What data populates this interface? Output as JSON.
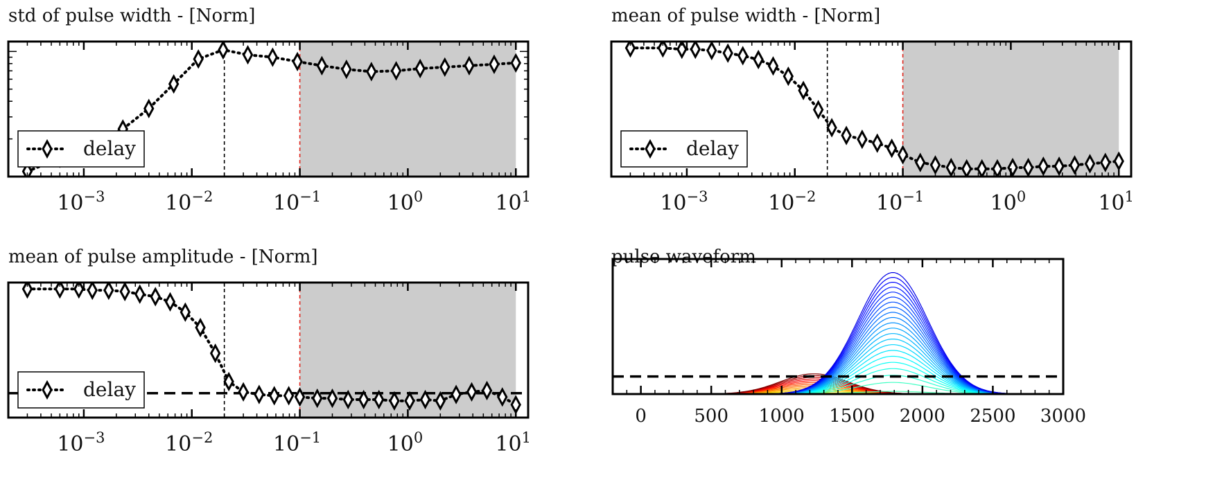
{
  "chart_data": [
    {
      "type": "scatter",
      "title": "std of pulse width - [Norm]",
      "xscale": "log",
      "yscale": "log",
      "xlim": [
        0.0002,
        13
      ],
      "ylim": [
        0.1,
        1.2
      ],
      "xticklabels": [
        "10",
        "10",
        "10",
        "10",
        "10"
      ],
      "xtickexp": [
        "−3",
        "−2",
        "−1",
        "0",
        "1"
      ],
      "xtickvals": [
        0.001,
        0.01,
        0.1,
        1,
        10
      ],
      "vline_black": 0.02,
      "vline_red": 0.1,
      "shaded_region": [
        0.1,
        10
      ],
      "legend": {
        "label": "delay",
        "loc": "lower left"
      },
      "series": [
        {
          "name": "delay",
          "x": [
            0.0003,
            0.0006,
            0.0009,
            0.0013,
            0.0023,
            0.004,
            0.0068,
            0.0115,
            0.0195,
            0.033,
            0.056,
            0.095,
            0.16,
            0.27,
            0.46,
            0.78,
            1.3,
            2.2,
            3.7,
            6.3,
            10
          ],
          "y": [
            0.11,
            0.14,
            0.16,
            0.19,
            0.24,
            0.35,
            0.55,
            0.87,
            1.03,
            0.94,
            0.9,
            0.83,
            0.77,
            0.72,
            0.69,
            0.7,
            0.73,
            0.75,
            0.77,
            0.79,
            0.81
          ]
        }
      ]
    },
    {
      "type": "scatter",
      "title": "mean of pulse width - [Norm]",
      "xscale": "log",
      "xlim": [
        0.0002,
        13
      ],
      "ylim": [
        0,
        1.05
      ],
      "xticklabels": [
        "10",
        "10",
        "10",
        "10",
        "10"
      ],
      "xtickexp": [
        "−3",
        "−2",
        "−1",
        "0",
        "1"
      ],
      "xtickvals": [
        0.001,
        0.01,
        0.1,
        1,
        10
      ],
      "vline_black": 0.02,
      "vline_red": 0.1,
      "shaded_region": [
        0.1,
        10
      ],
      "legend": {
        "label": "delay",
        "loc": "lower left"
      },
      "series": [
        {
          "name": "delay",
          "x": [
            0.0003,
            0.0006,
            0.0009,
            0.0012,
            0.0017,
            0.0024,
            0.0033,
            0.0046,
            0.0063,
            0.0087,
            0.012,
            0.0165,
            0.022,
            0.03,
            0.042,
            0.058,
            0.079,
            0.1,
            0.145,
            0.2,
            0.28,
            0.39,
            0.54,
            0.75,
            1.04,
            1.45,
            2.0,
            2.8,
            3.9,
            5.4,
            7.5,
            10
          ],
          "y": [
            1.0,
            1.0,
            0.99,
            0.99,
            0.98,
            0.96,
            0.94,
            0.91,
            0.86,
            0.78,
            0.67,
            0.52,
            0.38,
            0.32,
            0.29,
            0.26,
            0.22,
            0.17,
            0.11,
            0.09,
            0.07,
            0.06,
            0.06,
            0.06,
            0.07,
            0.07,
            0.08,
            0.08,
            0.09,
            0.1,
            0.11,
            0.12
          ]
        }
      ]
    },
    {
      "type": "scatter",
      "title": "mean of pulse amplitude - [Norm]",
      "xscale": "log",
      "xlim": [
        0.0002,
        13
      ],
      "ylim": [
        0,
        1.05
      ],
      "xticklabels": [
        "10",
        "10",
        "10",
        "10",
        "10"
      ],
      "xtickexp": [
        "−3",
        "−2",
        "−1",
        "0",
        "1"
      ],
      "xtickvals": [
        0.001,
        0.01,
        0.1,
        1,
        10
      ],
      "vline_black": 0.02,
      "vline_red": 0.1,
      "shaded_region": [
        0.1,
        10
      ],
      "hline_dashed": 0.19,
      "legend": {
        "label": "delay",
        "loc": "lower left"
      },
      "series": [
        {
          "name": "delay",
          "x": [
            0.0003,
            0.0006,
            0.0009,
            0.0012,
            0.0017,
            0.0024,
            0.0033,
            0.0046,
            0.0063,
            0.0087,
            0.012,
            0.0165,
            0.022,
            0.03,
            0.042,
            0.058,
            0.079,
            0.1,
            0.145,
            0.2,
            0.28,
            0.39,
            0.54,
            0.75,
            1.04,
            1.45,
            2.0,
            2.8,
            3.9,
            5.4,
            7.5,
            10
          ],
          "y": [
            1.0,
            1.0,
            1.0,
            0.99,
            0.99,
            0.98,
            0.96,
            0.94,
            0.9,
            0.82,
            0.7,
            0.5,
            0.28,
            0.2,
            0.18,
            0.17,
            0.17,
            0.16,
            0.15,
            0.15,
            0.14,
            0.14,
            0.14,
            0.13,
            0.13,
            0.14,
            0.13,
            0.18,
            0.2,
            0.21,
            0.16,
            0.1
          ]
        }
      ]
    },
    {
      "type": "line",
      "title": "pulse waveform",
      "xlim": [
        -200,
        3000
      ],
      "ylim": [
        0,
        1.0
      ],
      "xticks": [
        0,
        500,
        1000,
        1500,
        2000,
        2500,
        3000
      ],
      "hline_dashed": 0.13,
      "colormap": "jet",
      "curves": {
        "blue_family": {
          "center": 1790,
          "width": 250,
          "amp_min": 0.02,
          "amp_max": 0.9,
          "count": 22
        },
        "red_family": {
          "center": 1230,
          "width": 240,
          "amp_min": 0.01,
          "amp_max": 0.15,
          "count": 12
        },
        "baseline_x": [
          0,
          2900
        ]
      }
    }
  ]
}
